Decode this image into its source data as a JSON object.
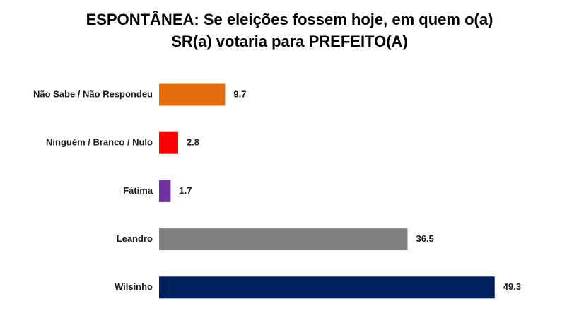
{
  "chart_data": {
    "type": "bar",
    "orientation": "horizontal",
    "title": [
      "ESPONTÂNEA: Se eleições fossem hoje, em quem o(a)",
      "SR(a) votaria para PREFEITO(A)"
    ],
    "categories": [
      "Não Sabe / Não Respondeu",
      "Ninguém / Branco / Nulo",
      "Fátima",
      "Leandro",
      "Wilsinho"
    ],
    "values": [
      9.7,
      2.8,
      1.7,
      36.5,
      49.3
    ],
    "value_labels": [
      "9.7",
      "2.8",
      "1.7",
      "36.5",
      "49.3"
    ],
    "colors": [
      "#e46c0a",
      "#ff0000",
      "#7030a0",
      "#808080",
      "#002060"
    ],
    "xlim": [
      0,
      50
    ],
    "grid": false,
    "legend": "none"
  }
}
